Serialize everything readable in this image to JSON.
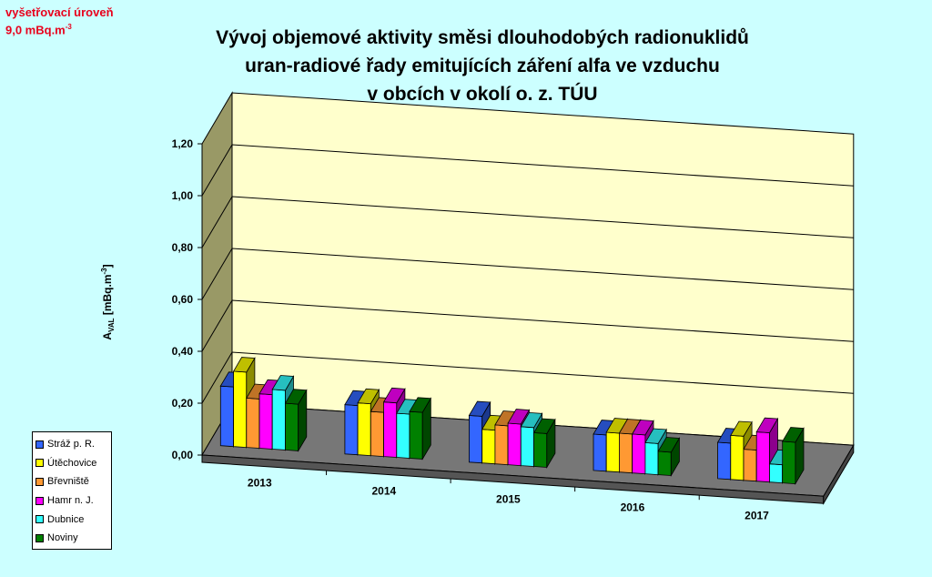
{
  "note": {
    "line1": "vyšetřovací úroveň",
    "line2": "9,0 mBq.m",
    "line2_sup": "-3"
  },
  "chart_data": {
    "type": "bar",
    "title": [
      "Vývoj objemové aktivity směsi dlouhodobých radionuklidů",
      "uran-radiové řady emitujících záření alfa ve vzduchu",
      "v obcích v okolí o. z. TÚU"
    ],
    "ylabel_main": "A",
    "ylabel_sub": "VAL",
    "ylabel_unit": " [mBq.m",
    "ylabel_sup": "-3",
    "ylabel_close": "]",
    "categories": [
      "2013",
      "2014",
      "2015",
      "2016",
      "2017"
    ],
    "yticks": [
      "0,00",
      "0,20",
      "0,40",
      "0,60",
      "0,80",
      "1,00",
      "1,20"
    ],
    "ylim": [
      0,
      1.2
    ],
    "grid": true,
    "legend_position": "bottom-left",
    "series": [
      {
        "name": "Stráž p. R.",
        "color": "#3366ff",
        "values": [
          0.23,
          0.19,
          0.18,
          0.14,
          0.14
        ]
      },
      {
        "name": "Útěchovice",
        "color": "#ffff00",
        "values": [
          0.29,
          0.2,
          0.13,
          0.15,
          0.17
        ]
      },
      {
        "name": "Břevniště",
        "color": "#ff9933",
        "values": [
          0.19,
          0.17,
          0.15,
          0.15,
          0.12
        ]
      },
      {
        "name": "Hamr n. J.",
        "color": "#ff00ff",
        "values": [
          0.21,
          0.21,
          0.16,
          0.15,
          0.19
        ]
      },
      {
        "name": "Dubnice",
        "color": "#33ffff",
        "values": [
          0.23,
          0.17,
          0.15,
          0.12,
          0.07
        ]
      },
      {
        "name": "Noviny",
        "color": "#008000",
        "values": [
          0.18,
          0.18,
          0.13,
          0.09,
          0.16
        ]
      }
    ]
  }
}
